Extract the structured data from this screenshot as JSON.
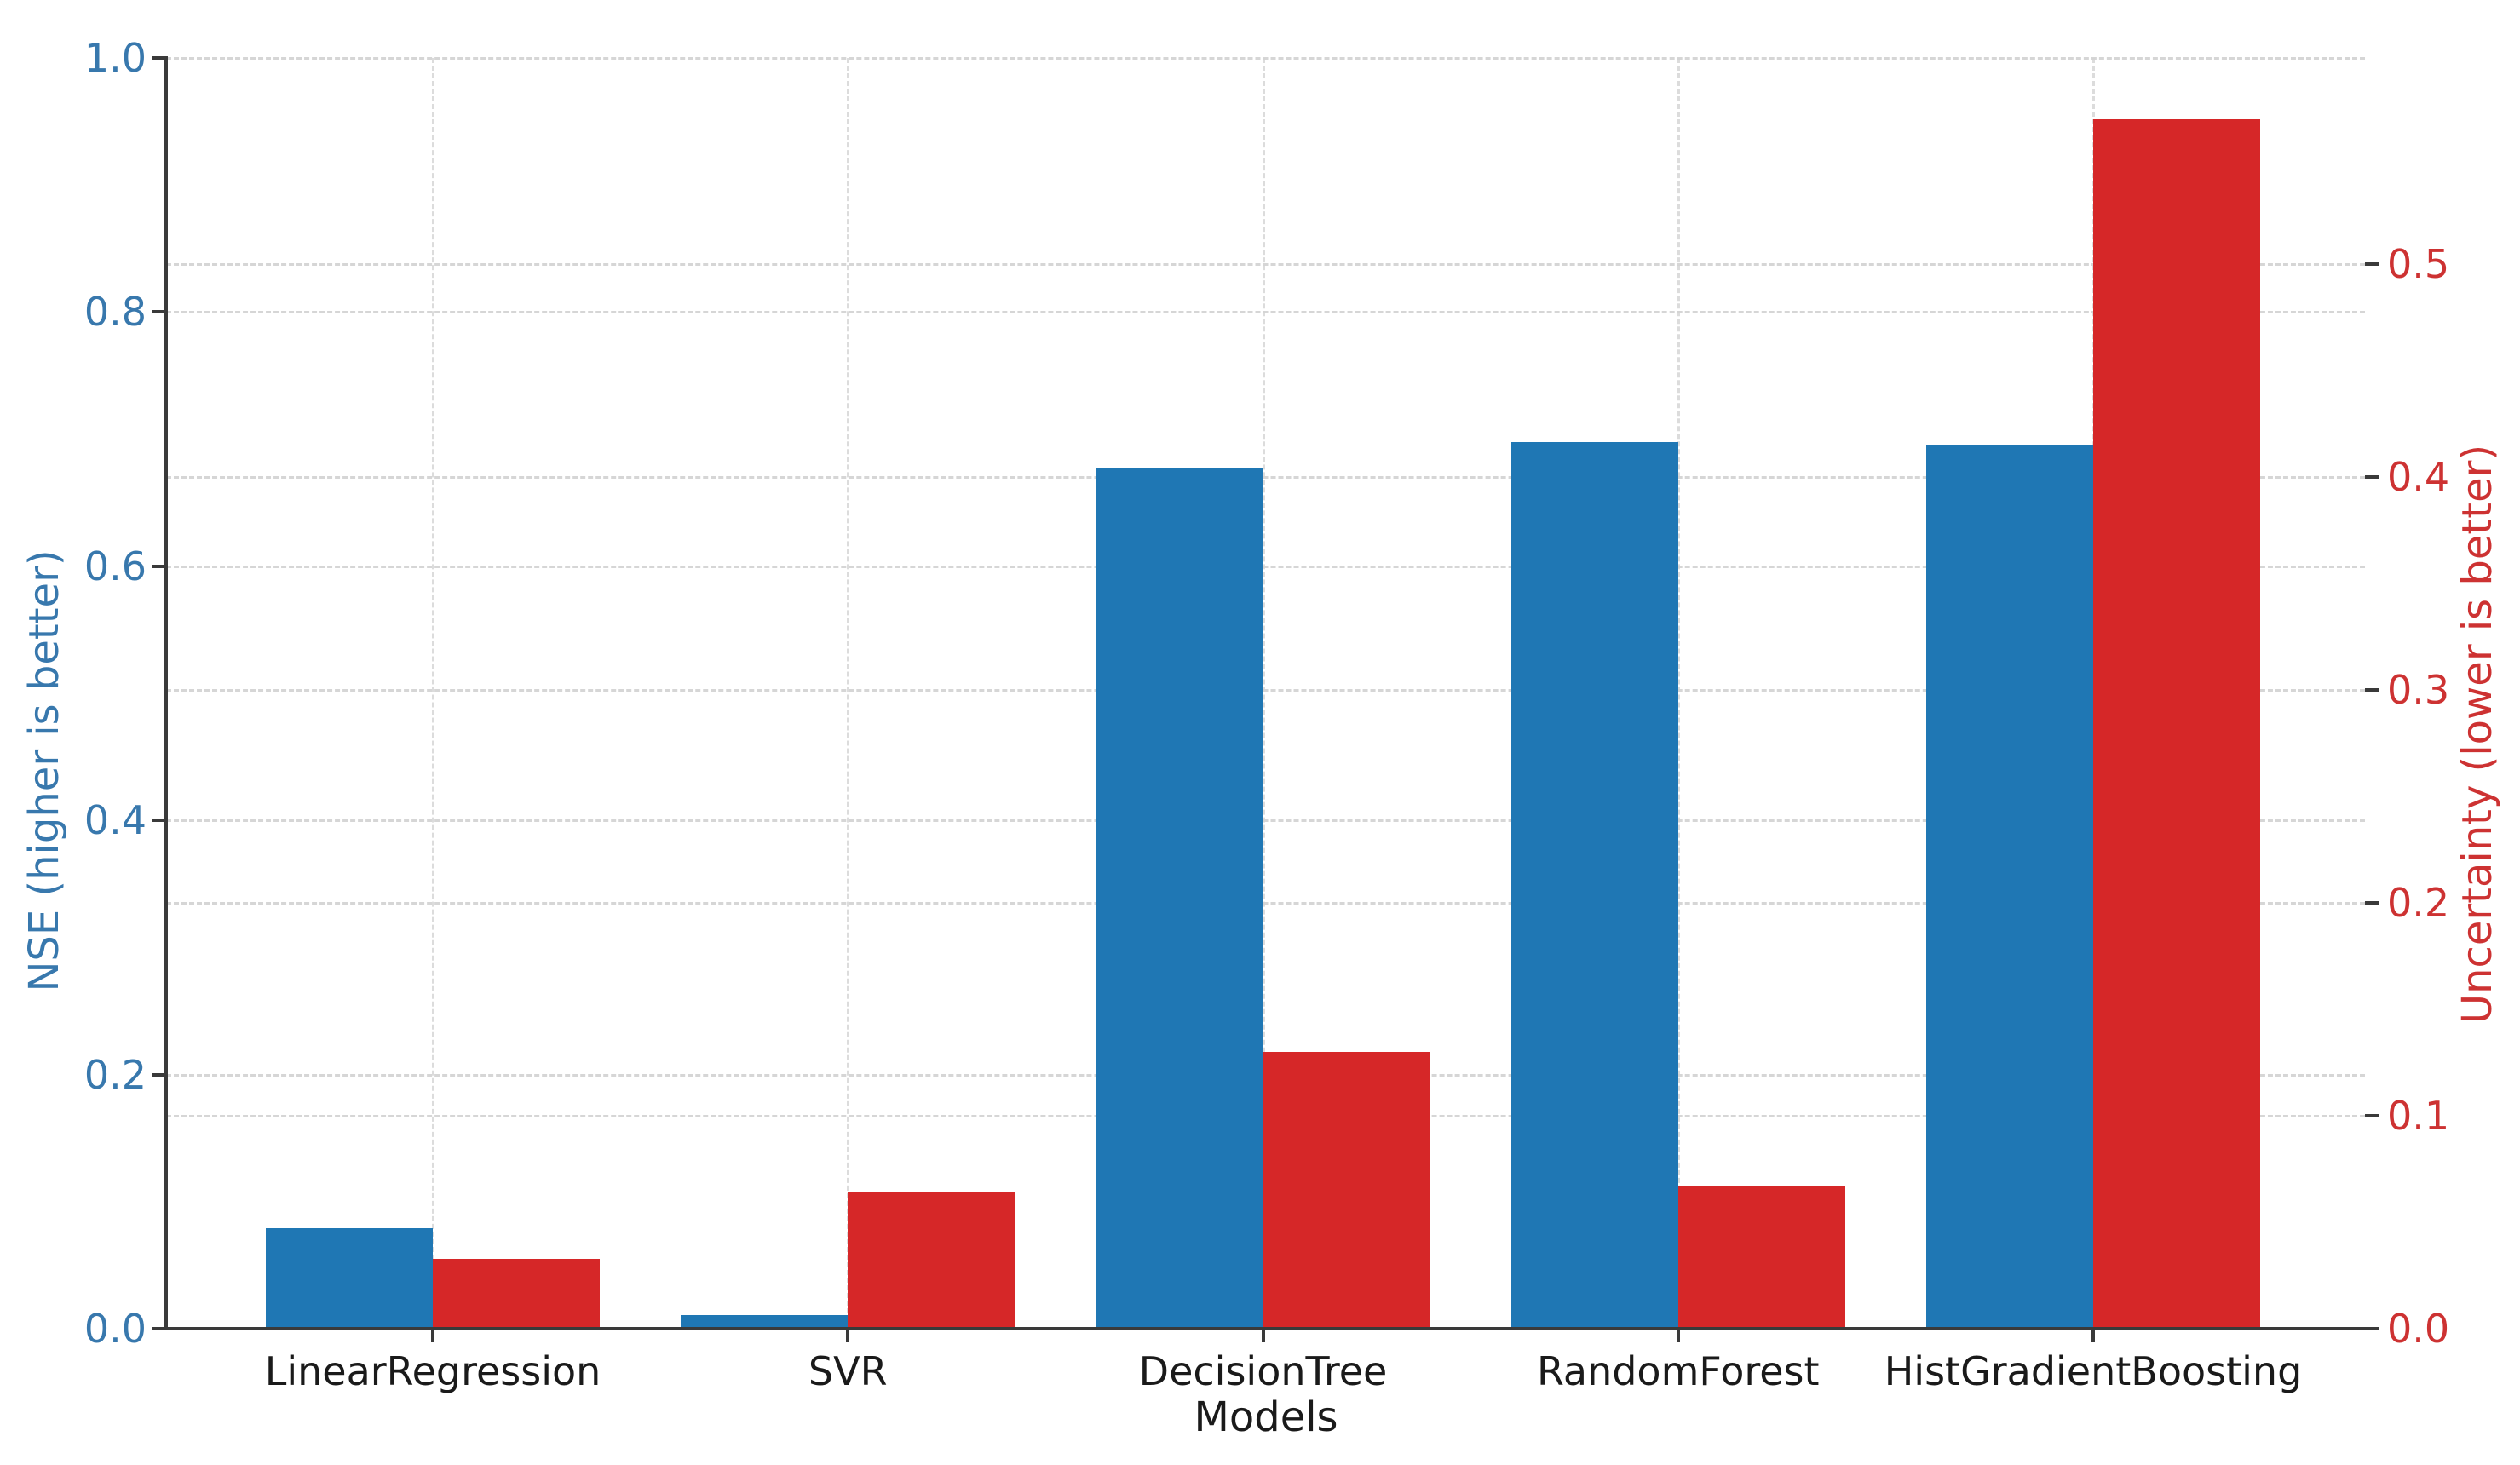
{
  "chart_data": {
    "type": "bar",
    "title": "",
    "categories": [
      "LinearRegression",
      "SVR",
      "DecisionTree",
      "RandomForest",
      "HistGradientBoosting"
    ],
    "series": [
      {
        "name": "NSE",
        "axis": "left",
        "color": "#1f77b4",
        "values": [
          0.079,
          0.011,
          0.677,
          0.698,
          0.695
        ]
      },
      {
        "name": "Uncertainty",
        "axis": "right",
        "color": "#d62728",
        "values": [
          0.033,
          0.064,
          0.13,
          0.067,
          0.568
        ]
      }
    ],
    "xlabel": "Models",
    "left_axis": {
      "label": "NSE  (higher is better)",
      "color": "#3878ad",
      "tick_labels": [
        "1.0",
        "0.8",
        "0.6",
        "0.4",
        "0.2",
        "0.0"
      ],
      "tick_values": [
        1.0,
        0.8,
        0.6,
        0.4,
        0.2,
        0.0
      ],
      "ylim": [
        0,
        1.0
      ]
    },
    "right_axis": {
      "label": "Uncertainty (lower is better)",
      "color": "#cd3232",
      "tick_labels": [
        "0.5",
        "0.4",
        "0.3",
        "0.2",
        "0.1",
        "0.0"
      ],
      "tick_values": [
        0.5,
        0.4,
        0.3,
        0.2,
        0.1,
        0.0
      ],
      "ylim": [
        0,
        0.597
      ]
    },
    "grid": true,
    "grid_style": "dashed",
    "legend_position": "none",
    "background": "#ffffff"
  }
}
